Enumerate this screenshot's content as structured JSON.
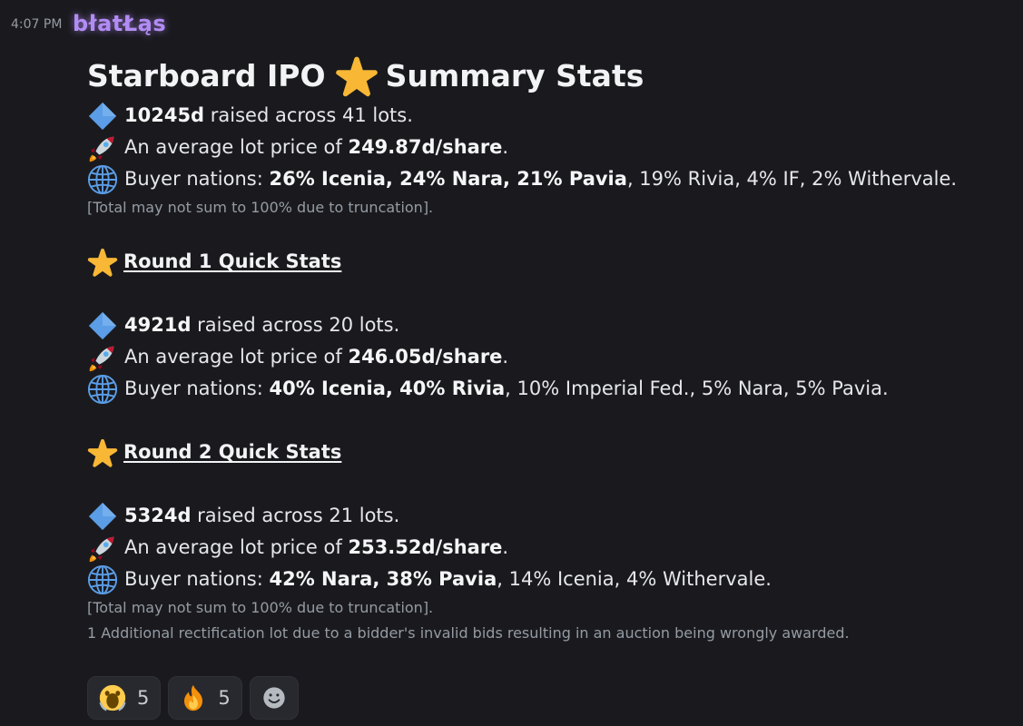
{
  "message": {
    "timestamp": "4:07 PM",
    "author": "błatŁąs",
    "title_part1": "Starboard IPO",
    "title_part2": "Summary Stats",
    "summary": {
      "raised": "10245d",
      "raised_suffix": " raised across 41 lots.",
      "avg_prefix": "An average lot price of ",
      "avg_value": "249.87d/share",
      "avg_suffix": ".",
      "buyers_label": "Buyer nations: ",
      "buyers_bold": "26% Icenia, 24% Nara, 21% Pavia",
      "buyers_rest": ", 19% Rivia, 4% IF, 2% Withervale.",
      "note": "[Total may not sum to 100% due to truncation]."
    },
    "round1": {
      "heading": "Round 1 Quick Stats",
      "raised": "4921d",
      "raised_suffix": " raised across 20 lots.",
      "avg_prefix": "An average lot price of ",
      "avg_value": "246.05d/share",
      "avg_suffix": ".",
      "buyers_label": "Buyer nations: ",
      "buyers_bold": "40% Icenia, 40% Rivia",
      "buyers_rest": ", 10% Imperial Fed., 5% Nara, 5% Pavia."
    },
    "round2": {
      "heading": "Round 2 Quick Stats",
      "raised": "5324d",
      "raised_suffix": " raised across 21 lots.",
      "avg_prefix": "An average lot price of ",
      "avg_value": "253.52d/share",
      "avg_suffix": ".",
      "buyers_label": "Buyer nations: ",
      "buyers_bold": "42% Nara, 38% Pavia",
      "buyers_rest": ", 14% Icenia, 4% Withervale.",
      "note": "[Total may not sum to 100% due to truncation].",
      "note2": "1 Additional rectification lot due to a bidder's invalid bids resulting in an auction being wrongly awarded."
    }
  },
  "reactions": [
    {
      "emoji": "screaming-face",
      "count": "5"
    },
    {
      "emoji": "fire",
      "count": "5"
    }
  ],
  "colors": {
    "background": "#1a1a1e",
    "username": "#b28cf5",
    "muted": "#949ba4",
    "diamond": "#5b9de6",
    "star": "#f8b735"
  }
}
